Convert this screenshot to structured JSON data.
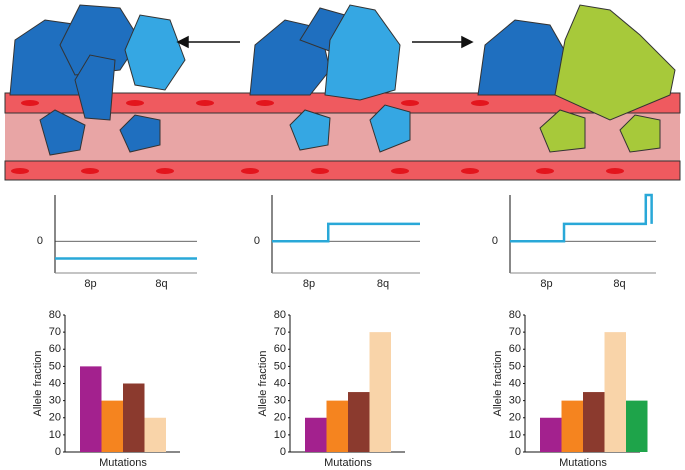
{
  "chart_data": [
    {
      "type": "step",
      "xlim": [
        0,
        1
      ],
      "ylim": [
        -0.55,
        0.8
      ],
      "yticks": [
        0
      ],
      "grid": true,
      "color": "#29a8d8",
      "categories": [
        "8p",
        "8q"
      ],
      "x": [
        0,
        1
      ],
      "values": [
        -0.3,
        -0.3
      ]
    },
    {
      "type": "step",
      "xlim": [
        0,
        1
      ],
      "ylim": [
        -0.55,
        0.8
      ],
      "yticks": [
        0
      ],
      "grid": true,
      "color": "#29a8d8",
      "categories": [
        "8p",
        "8q"
      ],
      "x": [
        0,
        0.38,
        0.38,
        1
      ],
      "values": [
        0,
        0,
        0.3,
        0.3
      ]
    },
    {
      "type": "step",
      "xlim": [
        0,
        1
      ],
      "ylim": [
        -0.55,
        0.8
      ],
      "yticks": [
        0
      ],
      "grid": true,
      "color": "#29a8d8",
      "categories": [
        "8p",
        "8q"
      ],
      "x": [
        0,
        0.37,
        0.37,
        0.93,
        0.93,
        0.97,
        0.97
      ],
      "values": [
        0,
        0,
        0.3,
        0.3,
        0.8,
        0.8,
        0.3
      ]
    },
    {
      "type": "bar",
      "ylabel": "Allele fraction",
      "xlabel": "Mutations",
      "ylim": [
        0,
        80
      ],
      "yticks": [
        0,
        10,
        20,
        30,
        40,
        50,
        60,
        70,
        80
      ],
      "values": [
        50,
        30,
        40,
        20
      ],
      "colors": [
        "#a3218e",
        "#f5841f",
        "#8b3a2e",
        "#f9d4a9"
      ]
    },
    {
      "type": "bar",
      "ylabel": "Allele fraction",
      "xlabel": "Mutations",
      "ylim": [
        0,
        80
      ],
      "yticks": [
        0,
        10,
        20,
        30,
        40,
        50,
        60,
        70,
        80
      ],
      "values": [
        20,
        30,
        35,
        70
      ],
      "colors": [
        "#a3218e",
        "#f5841f",
        "#8b3a2e",
        "#f9d4a9"
      ]
    },
    {
      "type": "bar",
      "ylabel": "Allele fraction",
      "xlabel": "Mutations",
      "ylim": [
        0,
        80
      ],
      "yticks": [
        0,
        10,
        20,
        30,
        40,
        50,
        60,
        70,
        80
      ],
      "values": [
        20,
        30,
        35,
        70,
        30
      ],
      "colors": [
        "#a3218e",
        "#f5841f",
        "#8b3a2e",
        "#f9d4a9",
        "#1ea44a"
      ]
    }
  ]
}
